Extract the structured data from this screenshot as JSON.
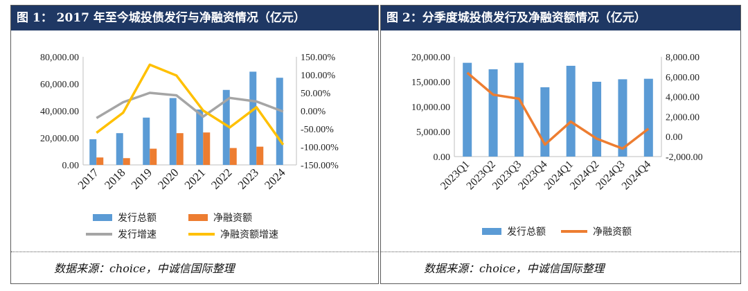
{
  "chart_data": [
    {
      "type": "bar",
      "title": "图 1： 2017 年至今城投债发行与净融资情况（亿元）",
      "categories": [
        "2017",
        "2018",
        "2019",
        "2020",
        "2021",
        "2022",
        "2023",
        "2024"
      ],
      "series": [
        {
          "name": "发行总额",
          "kind": "bar",
          "axis": "left",
          "color": "#5b9bd5",
          "values": [
            19000,
            23500,
            35000,
            49500,
            41000,
            55500,
            69000,
            64500
          ]
        },
        {
          "name": "净融资额",
          "kind": "bar",
          "axis": "left",
          "color": "#ed7d31",
          "values": [
            5500,
            5000,
            12000,
            23500,
            24000,
            12500,
            13500,
            0
          ]
        },
        {
          "name": "发行增速",
          "kind": "line",
          "axis": "right",
          "color": "#a5a5a5",
          "values": [
            -20,
            24,
            50,
            43,
            -16,
            36,
            26,
            -2
          ]
        },
        {
          "name": "净融资额增速",
          "kind": "line",
          "axis": "right",
          "color": "#ffc000",
          "values": [
            -61,
            -5,
            128,
            98,
            1,
            -46,
            10,
            -94
          ]
        }
      ],
      "ylim_left": [
        0,
        80000
      ],
      "ylim_right": [
        -150,
        150
      ],
      "yticks_left": [
        "80,000.00",
        "60,000.00",
        "40,000.00",
        "20,000.00",
        "0.00"
      ],
      "yticks_right": [
        "150.00%",
        "100.00%",
        "50.00%",
        "0.00%",
        "-50.00%",
        "-100.00%",
        "-150.00%"
      ],
      "grid": false,
      "legend": "bottom"
    },
    {
      "type": "bar",
      "title": "图 2：分季度城投债发行及净融资额情况（亿元）",
      "categories": [
        "2023Q1",
        "2023Q2",
        "2023Q3",
        "2023Q4",
        "2024Q1",
        "2024Q2",
        "2024Q3",
        "2024Q4"
      ],
      "series": [
        {
          "name": "发行总额",
          "kind": "bar",
          "axis": "left",
          "color": "#5b9bd5",
          "values": [
            18800,
            17500,
            18800,
            13900,
            18200,
            15000,
            15500,
            15600
          ]
        },
        {
          "name": "净融资额",
          "kind": "line",
          "axis": "right",
          "color": "#ed7d31",
          "values": [
            6400,
            4200,
            3800,
            -800,
            1500,
            -200,
            -1200,
            800
          ]
        }
      ],
      "ylim_left": [
        0,
        20000
      ],
      "ylim_right": [
        -2000,
        8000
      ],
      "yticks_left": [
        "20,000.00",
        "15,000.00",
        "10,000.00",
        "5,000.00",
        "0.00"
      ],
      "yticks_right": [
        "8,000.00",
        "6,000.00",
        "4,000.00",
        "2,000.00",
        "0.00",
        "-2,000.00"
      ],
      "grid": false,
      "legend": "bottom"
    }
  ],
  "source": "数据来源：choice，中诚信国际整理"
}
